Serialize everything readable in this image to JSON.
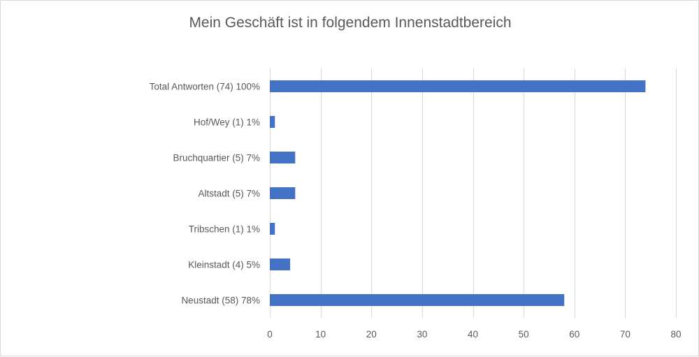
{
  "chart_data": {
    "type": "bar",
    "orientation": "horizontal",
    "title": "Mein Geschäft ist in folgendem Innenstadtbereich",
    "xlabel": "",
    "ylabel": "",
    "categories": [
      "Total Antworten (74) 100%",
      "Hof/Wey (1) 1%",
      "Bruchquartier (5) 7%",
      "Altstadt (5) 7%",
      "Tribschen (1) 1%",
      "Kleinstadt (4) 5%",
      "Neustadt (58) 78%"
    ],
    "values": [
      74,
      1,
      5,
      5,
      1,
      4,
      58
    ],
    "xlim": [
      0,
      80
    ],
    "xticks": [
      0,
      10,
      20,
      30,
      40,
      50,
      60,
      70,
      80
    ],
    "grid": true,
    "legend": "none",
    "bar_color": "#4472c4"
  }
}
